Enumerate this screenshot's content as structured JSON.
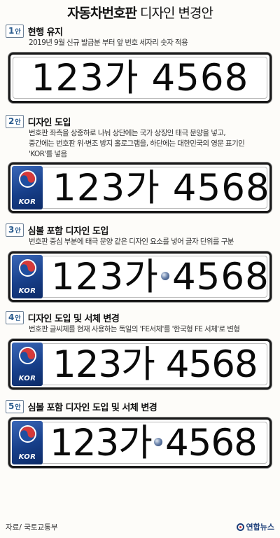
{
  "header": {
    "title_bold": "자동차번호판",
    "title_light": "디자인 변경안"
  },
  "plate_text": {
    "number": "123",
    "hangul": "가",
    "serial": "4568",
    "country_mark": "KOR"
  },
  "options": [
    {
      "num": "1",
      "suffix": "안",
      "title": "현행 유지",
      "desc": [
        "2019년 9월 신규 발급분 부터 앞 번호 세자리 숫자 적용"
      ]
    },
    {
      "num": "2",
      "suffix": "안",
      "title": "디자인 도입",
      "desc": [
        "번호판 좌측을 상중하로 나눠 상단에는 국가 상징인 태극 문양을 넣고,",
        "중간에는 번호판 위·변조 방지 홀로그램을, 하단에는 대한민국의 영문 표기인",
        "'KOR'를 넣음"
      ]
    },
    {
      "num": "3",
      "suffix": "안",
      "title": "심볼 포함 디자인 도입",
      "desc": [
        "번호판 중심 부분에 태극 문양 같은 디자인 요소를 넣어 글자 단위를 구분"
      ]
    },
    {
      "num": "4",
      "suffix": "안",
      "title": "디자인 도입 및 서체 변경",
      "desc": [
        "번호판 글씨체를 현재 사용하는 독일의 'FE서체'를 '한국형 FE 서체'로 변형"
      ]
    },
    {
      "num": "5",
      "suffix": "안",
      "title": "심볼 포함 디자인 도입 및 서체 변경",
      "desc": []
    }
  ],
  "footer": {
    "source": "자료/ 국토교통부",
    "brand": "연합뉴스"
  },
  "colors": {
    "badge_border": "#6a7f95",
    "strip_blue": "#173f8a",
    "plate_border": "#1a1a1a",
    "brand": "#1d3f7a"
  }
}
